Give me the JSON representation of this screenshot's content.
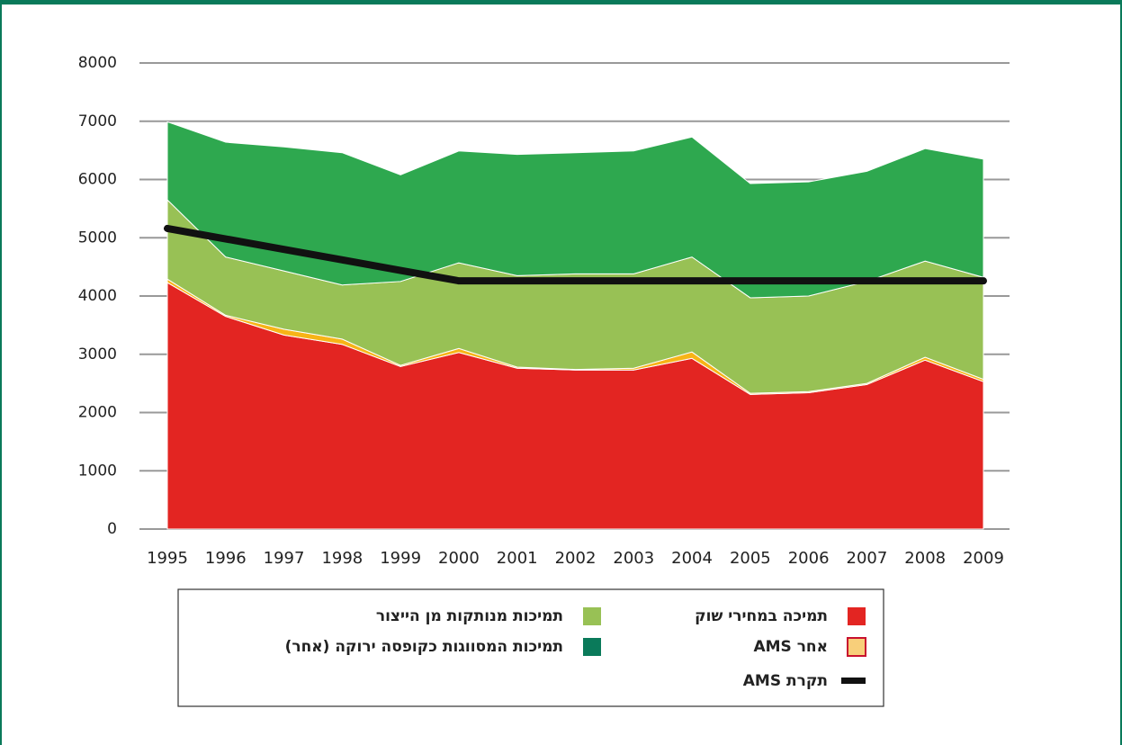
{
  "chart_data": {
    "type": "stacked-area",
    "x": [
      1995,
      1996,
      1997,
      1998,
      1999,
      2000,
      2001,
      2002,
      2003,
      2004,
      2005,
      2006,
      2007,
      2008,
      2009
    ],
    "xlim": [
      1995,
      2009
    ],
    "ylim": [
      0,
      8000
    ],
    "yticks": [
      0,
      1000,
      2000,
      3000,
      4000,
      5000,
      6000,
      7000,
      8000
    ],
    "grid": true,
    "series": [
      {
        "name": "תמיכה במחירי שוק",
        "color": "#e32522",
        "values": [
          4230,
          3650,
          3330,
          3170,
          2790,
          3030,
          2760,
          2730,
          2730,
          2930,
          2310,
          2340,
          2480,
          2900,
          2530
        ]
      },
      {
        "name": "אחר AMS",
        "color": "#f7b417",
        "values": [
          60,
          20,
          100,
          90,
          20,
          70,
          20,
          10,
          30,
          110,
          20,
          20,
          20,
          50,
          40
        ]
      },
      {
        "name": "תמיכות מנותקות מן הייצור",
        "color": "#98c155",
        "values": [
          1360,
          1000,
          1000,
          930,
          1440,
          1470,
          1570,
          1640,
          1620,
          1630,
          1640,
          1640,
          1750,
          1650,
          1750
        ]
      },
      {
        "name": "תמיכות המסווגות כקופסה ירוקה (אחר)",
        "color": "#2ea84f",
        "values": [
          1340,
          1970,
          2130,
          2270,
          1830,
          1920,
          2080,
          2080,
          2110,
          2060,
          1960,
          1960,
          1890,
          1930,
          2030
        ]
      }
    ],
    "line": {
      "name": "תקרת AMS",
      "color": "#111111",
      "values": [
        5160,
        4980,
        4800,
        4620,
        4440,
        4260,
        4260,
        4260,
        4260,
        4260,
        4260,
        4260,
        4260,
        4260,
        4260
      ]
    }
  }
}
